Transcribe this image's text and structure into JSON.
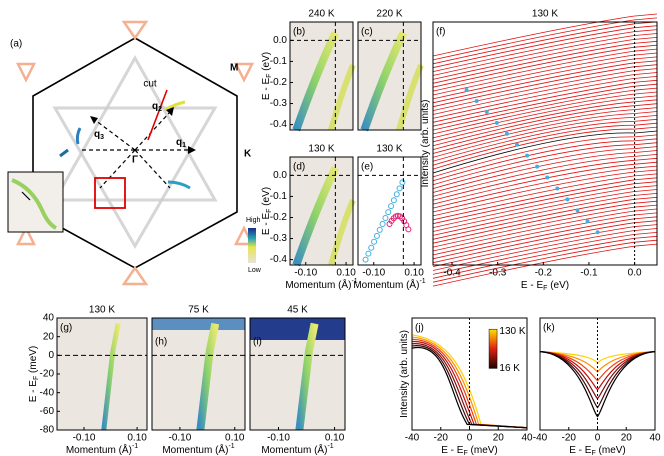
{
  "panel_a": {
    "label": "(a)",
    "cut": "cut",
    "gamma": "Γ",
    "M": "M",
    "K": "K",
    "q": [
      {
        "q": "q",
        "n": "1"
      },
      {
        "q": "q",
        "n": "2"
      },
      {
        "q": "q",
        "n": "3"
      }
    ],
    "high": "High",
    "low": "Low"
  },
  "panels": [
    {
      "label": "(b)",
      "title": "240 K",
      "yticks": [
        "0.0",
        "-0.1",
        "-0.2",
        "-0.3",
        "-0.4"
      ],
      "ylabel": {
        "t": "E - E",
        "sub": "F",
        "u": " (eV)"
      }
    },
    {
      "label": "(c)",
      "title": "220 K"
    },
    {
      "label": "(d)",
      "title": "130 K",
      "yticks": [
        "0.0",
        "-0.1",
        "-0.2",
        "-0.3",
        "-0.4"
      ],
      "xticks": [
        "-0.10",
        "0.10"
      ],
      "ylabel": {
        "t": "E - E",
        "sub": "F",
        "u": " (eV)"
      },
      "xlabel": {
        "t": "Momentum  (Å",
        "sup": "-1",
        "u": ")"
      }
    },
    {
      "label": "(e)",
      "title": "130 K",
      "xticks": [
        "-0.10",
        "0.10"
      ],
      "xlabel": {
        "t": "Momentum  (Å",
        "sup": "-1",
        "u": ")"
      }
    },
    {
      "label": "(f)",
      "title": "130 K",
      "xticks": [
        "-0.4",
        "-0.3",
        "-0.2",
        "-0.1",
        "0.0"
      ],
      "ylabel": {
        "t": "Intensity (arb. units)"
      },
      "xlabel": {
        "t": "E - E",
        "sub": "F",
        "u": " (eV)"
      }
    },
    {
      "label": "(g)",
      "title": "130 K",
      "yticks": [
        "40",
        "20",
        "0",
        "-20",
        "-40",
        "-60",
        "-80"
      ],
      "xticks": [
        "-0.10",
        "0.10"
      ],
      "ylabel": {
        "t": "E - E",
        "sub": "F",
        "u": " (meV)"
      },
      "xlabel": {
        "t": "Momentum  (Å",
        "sup": "-1",
        "u": ")"
      }
    },
    {
      "label": "(h)",
      "title": "75 K",
      "xticks": [
        "-0.10",
        "0.10"
      ],
      "xlabel": {
        "t": "Momentum  (Å",
        "sup": "-1",
        "u": ")"
      }
    },
    {
      "label": "(i)",
      "title": "45 K",
      "xticks": [
        "-0.10",
        "0.10"
      ],
      "xlabel": {
        "t": "Momentum  (Å",
        "sup": "-1",
        "u": ")"
      }
    },
    {
      "label": "(j)",
      "xticks": [
        "-40",
        "-20",
        "0",
        "20",
        "40"
      ],
      "colorbar": [
        "130 K",
        "16 K"
      ],
      "ylabel": {
        "t": "Intensity (arb. units)"
      },
      "xlabel": {
        "t": "E - E",
        "sub": "F",
        "u": " (meV)"
      }
    },
    {
      "label": "(k)",
      "xticks": [
        "-40",
        "-20",
        "0",
        "20",
        "40"
      ],
      "xlabel": {
        "t": "E - E",
        "sub": "F",
        "u": " (meV)"
      }
    }
  ]
}
